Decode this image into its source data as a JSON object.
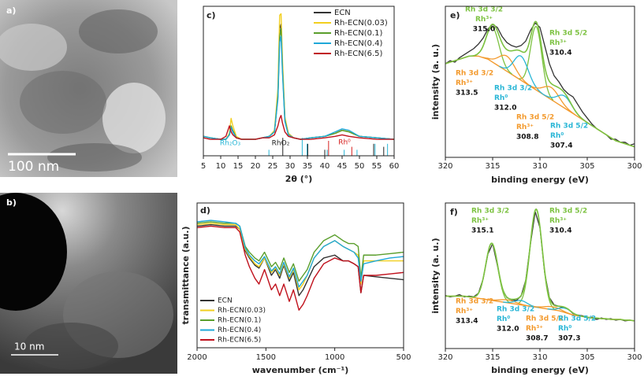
{
  "images": [
    {
      "label": "a)",
      "scale_bar": "100 nm"
    },
    {
      "label": "b)",
      "scale_bar": "10 nm"
    }
  ],
  "chart_data": [
    {
      "type": "line",
      "label": "c)",
      "xlabel": "2θ (°)",
      "x": [
        5,
        7,
        10,
        11.5,
        12.5,
        13,
        13.5,
        14.5,
        16,
        18,
        20,
        22,
        24,
        25.5,
        26.5,
        27,
        27.4,
        27.8,
        28.5,
        29.5,
        31,
        33,
        36,
        40,
        43,
        45,
        47,
        50,
        55,
        60
      ],
      "xlim": [
        5,
        60
      ],
      "xticks": [
        5,
        10,
        15,
        20,
        25,
        30,
        35,
        40,
        45,
        50,
        55,
        60
      ],
      "ylim": [
        0,
        100
      ],
      "legend": "upper right",
      "series": [
        {
          "name": "ECN",
          "color": "#333333",
          "values": [
            13,
            12,
            11,
            11,
            14,
            19,
            16,
            12,
            11,
            11,
            11,
            12,
            13,
            16,
            40,
            85,
            88,
            60,
            25,
            15,
            12,
            11,
            12,
            13,
            15,
            17,
            16,
            13,
            12,
            11
          ]
        },
        {
          "name": "Rh-ECN(0.03)",
          "color": "#f2cf1f",
          "values": [
            13,
            12,
            11,
            11,
            15,
            25,
            20,
            13,
            11,
            11,
            11,
            12,
            13,
            17,
            45,
            94,
            95,
            65,
            26,
            15,
            12,
            11,
            12,
            13,
            15,
            17,
            16,
            13,
            12,
            11
          ]
        },
        {
          "name": "Rh-ECN(0.1)",
          "color": "#5a9e2c",
          "values": [
            13,
            12,
            11,
            11,
            14,
            20,
            17,
            12,
            11,
            11,
            11,
            12,
            13,
            16,
            40,
            80,
            85,
            58,
            24,
            14,
            12,
            11,
            12,
            13,
            15,
            17,
            16,
            13,
            12,
            11
          ]
        },
        {
          "name": "Rh-ECN(0.4)",
          "color": "#1fa8d8",
          "values": [
            13,
            12,
            11,
            11,
            14,
            19,
            16,
            12,
            11,
            11,
            11,
            12,
            13,
            16,
            38,
            76,
            80,
            56,
            23,
            14,
            12,
            11,
            12,
            13,
            16,
            18,
            17,
            13,
            12,
            11
          ]
        },
        {
          "name": "Rh-ECN(6.5)",
          "color": "#c0121d",
          "values": [
            12,
            11,
            11,
            13,
            20,
            16,
            14,
            12,
            11,
            11,
            11,
            12,
            12,
            14,
            20,
            25,
            27,
            22,
            16,
            13,
            12,
            11,
            11,
            12,
            13,
            14,
            13,
            12,
            11,
            11
          ]
        }
      ],
      "reference_lines": [
        {
          "name": "Rh₂O₃",
          "color": "#29b6d6",
          "positions": [
            23.9,
            33.5,
            34.9,
            40.7,
            45.6,
            49.3,
            54.5,
            58.1
          ],
          "heights": [
            4,
            12,
            8,
            4,
            4,
            4,
            8,
            8
          ]
        },
        {
          "name": "RhO₂",
          "color": "#222222",
          "positions": [
            27.9,
            35.1,
            40.0,
            54.1,
            57
          ],
          "heights": [
            12,
            8,
            4,
            8,
            6
          ]
        },
        {
          "name": "Rh⁰",
          "color": "#d6201f",
          "positions": [
            41.1,
            47.8
          ],
          "heights": [
            10,
            6
          ]
        }
      ]
    },
    {
      "type": "line",
      "label": "d)",
      "xlabel": "wavenumber (cm⁻¹)",
      "ylabel": "transmittance (a.u.)",
      "x": [
        2000,
        1900,
        1800,
        1720,
        1690,
        1650,
        1620,
        1580,
        1550,
        1510,
        1460,
        1430,
        1400,
        1370,
        1330,
        1300,
        1260,
        1230,
        1200,
        1150,
        1080,
        1000,
        940,
        900,
        860,
        830,
        810,
        790,
        700,
        600,
        500
      ],
      "xlim": [
        2000,
        500
      ],
      "xticks": [
        2000,
        1500,
        1000,
        500
      ],
      "ylim": [
        0,
        100
      ],
      "legend": "lower left",
      "series": [
        {
          "name": "ECN",
          "color": "#333333",
          "values": [
            84,
            85,
            84,
            84,
            82,
            67,
            62,
            57,
            55,
            62,
            50,
            54,
            48,
            57,
            46,
            52,
            36,
            40,
            46,
            56,
            62,
            64,
            60,
            60,
            58,
            56,
            38,
            50,
            49,
            48,
            47
          ]
        },
        {
          "name": "Rh-ECN(0.03)",
          "color": "#f2cf1f",
          "values": [
            85,
            86,
            85,
            85,
            82,
            68,
            63,
            58,
            56,
            62,
            52,
            55,
            50,
            58,
            48,
            54,
            40,
            44,
            50,
            62,
            70,
            74,
            70,
            68,
            66,
            64,
            44,
            60,
            60,
            60,
            60
          ]
        },
        {
          "name": "Rh-ECN(0.1)",
          "color": "#5a9e2c",
          "values": [
            86,
            87,
            86,
            86,
            84,
            70,
            66,
            62,
            60,
            66,
            56,
            59,
            54,
            62,
            52,
            58,
            46,
            50,
            54,
            66,
            74,
            78,
            74,
            72,
            72,
            70,
            48,
            64,
            64,
            65,
            66
          ]
        },
        {
          "name": "Rh-ECN(0.4)",
          "color": "#1fa8d8",
          "values": [
            87,
            88,
            87,
            86,
            84,
            69,
            64,
            60,
            58,
            63,
            53,
            56,
            51,
            59,
            49,
            55,
            42,
            46,
            50,
            62,
            70,
            74,
            70,
            68,
            66,
            62,
            46,
            58,
            60,
            62,
            63
          ]
        },
        {
          "name": "Rh-ECN(6.5)",
          "color": "#c0121d",
          "values": [
            83,
            84,
            83,
            83,
            80,
            64,
            56,
            48,
            44,
            54,
            40,
            44,
            36,
            44,
            32,
            40,
            26,
            30,
            36,
            48,
            58,
            62,
            60,
            60,
            58,
            56,
            38,
            50,
            50,
            51,
            52
          ]
        }
      ]
    },
    {
      "type": "xps",
      "label": "e)",
      "xlabel": "binding energy (eV)",
      "ylabel": "intensity (a. u.)",
      "x": [
        320,
        319.5,
        319,
        318.5,
        318,
        317.5,
        317,
        316.5,
        316,
        315.5,
        315,
        314.5,
        314,
        313.5,
        313,
        312.5,
        312,
        311.5,
        311,
        310.5,
        310,
        309.5,
        309,
        308.5,
        308,
        307.5,
        307,
        306.5,
        306,
        305.5,
        305,
        304.5,
        304,
        303.5,
        303,
        302.5,
        302,
        301.5,
        301,
        300.5,
        300
      ],
      "xlim": [
        320,
        300
      ],
      "xticks": [
        320,
        315,
        310,
        305,
        300
      ],
      "ylim": [
        0,
        100
      ],
      "envelope_color": "#7dc242",
      "series": [
        {
          "color": "#333333",
          "values": [
            62,
            64,
            63,
            66,
            68,
            70,
            72,
            75,
            79,
            85,
            88,
            86,
            80,
            76,
            74,
            73,
            74,
            77,
            84,
            89,
            86,
            74,
            62,
            54,
            50,
            45,
            42,
            40,
            35,
            30,
            26,
            22,
            19,
            17,
            15,
            12,
            12,
            10,
            10,
            8,
            9
          ]
        },
        {
          "color": "#f39a2d",
          "values": [
            62,
            63,
            64,
            65,
            66,
            67,
            67,
            67,
            66,
            65,
            63,
            61,
            59,
            57,
            55,
            53,
            51,
            49,
            47,
            45,
            43,
            41,
            39,
            37,
            35,
            33,
            31,
            29,
            27,
            25,
            23,
            21,
            19,
            17,
            15,
            13,
            11,
            10,
            9,
            8,
            7
          ]
        }
      ],
      "peaks": [
        {
          "lines": [
            "Rh 3d 3/2",
            "Rh³⁺"
          ],
          "center": {
            "value": 315.0,
            "label": "315.0"
          },
          "height": 23,
          "fwhm": 1.6,
          "color": "#7dc242"
        },
        {
          "lines": [
            "Rh 3d 5/2",
            "Rh³⁺"
          ],
          "center": 310.4,
          "height": 42,
          "fwhm": 1.4,
          "color": "#7dc242"
        },
        {
          "lines": [
            "Rh 3d 3/2",
            "Rh³⁺"
          ],
          "center": 313.5,
          "height": 10,
          "fwhm": 2,
          "color": "#f39a2d"
        },
        {
          "lines": [
            "Rh 3d 3/2",
            "Rh⁰"
          ],
          "center": {
            "value": 312.0,
            "label": "312.0"
          },
          "height": 16,
          "fwhm": 1.8,
          "color": "#29b6d6"
        },
        {
          "lines": [
            "Rh 3d 5/2",
            "Rh³⁺"
          ],
          "center": 308.8,
          "height": 8,
          "fwhm": 2,
          "color": "#f39a2d"
        },
        {
          "lines": [
            "Rh 3d 5/2",
            "Rh⁰"
          ],
          "center": 307.4,
          "height": 8,
          "fwhm": 1.8,
          "color": "#29b6d6"
        }
      ]
    },
    {
      "type": "xps",
      "label": "f)",
      "xlabel": "binding energy (eV)",
      "ylabel": "intensity (a. u.)",
      "x": [
        320,
        319.5,
        319,
        318.5,
        318,
        317.5,
        317,
        316.5,
        316,
        315.5,
        315,
        314.5,
        314,
        313.5,
        313,
        312.5,
        312,
        311.5,
        311,
        310.5,
        310,
        309.5,
        309,
        308.5,
        308,
        307.5,
        307,
        306.5,
        306,
        305.5,
        305,
        304.5,
        304,
        303.5,
        303,
        302.5,
        302,
        301.5,
        301,
        300.5,
        300
      ],
      "xlim": [
        320,
        300
      ],
      "xticks": [
        320,
        315,
        310,
        305,
        300
      ],
      "ylim": [
        0,
        100
      ],
      "envelope_color": "#7dc242",
      "series": [
        {
          "color": "#333333",
          "values": [
            36.5,
            35.5,
            36,
            37,
            35.5,
            36,
            35.5,
            38,
            48,
            65,
            72,
            57,
            41,
            35,
            33.5,
            33,
            36,
            47,
            72,
            94,
            83,
            52,
            35,
            30,
            29,
            28,
            27,
            24,
            23,
            22.5,
            21,
            21.5,
            20,
            21,
            20,
            20.5,
            19.5,
            20,
            19,
            19.5,
            19
          ]
        },
        {
          "color": "#f39a2d",
          "values": [
            36,
            36,
            36,
            36,
            36,
            35.5,
            35,
            34.5,
            34,
            33.5,
            33,
            32.5,
            32,
            31.5,
            31,
            30.5,
            30,
            29.5,
            29,
            28.5,
            28,
            27.5,
            27,
            26.5,
            26,
            25,
            24,
            23,
            22.5,
            22,
            21.5,
            21,
            21,
            20.5,
            20.5,
            20,
            20,
            20,
            19.5,
            19.5,
            19
          ]
        }
      ],
      "peaks": [
        {
          "lines": [
            "Rh 3d 3/2",
            "Rh³⁺"
          ],
          "center": 315.1,
          "height": 39,
          "fwhm": 1.5,
          "color": "#7dc242"
        },
        {
          "lines": [
            "Rh 3d 5/2",
            "Rh³⁺"
          ],
          "center": 310.4,
          "height": 67,
          "fwhm": 1.5,
          "color": "#7dc242"
        },
        {
          "lines": [
            "Rh 3d 3/2",
            "Rh³⁺"
          ],
          "center": 313.4,
          "height": 2,
          "fwhm": 2,
          "color": "#f39a2d"
        },
        {
          "lines": [
            "Rh 3d 3/2",
            "Rh⁰"
          ],
          "center": {
            "value": 312.0,
            "label": "312.0"
          },
          "height": 3,
          "fwhm": 1.5,
          "color": "#29b6d6"
        },
        {
          "lines": [
            "Rh 3d 5/2",
            "Rh³⁺"
          ],
          "center": 308.7,
          "height": 2,
          "fwhm": 2,
          "color": "#f39a2d"
        },
        {
          "lines": [
            "Rh 3d 5/2",
            "Rh⁰"
          ],
          "center": 307.3,
          "height": 3,
          "fwhm": 1.5,
          "color": "#29b6d6"
        }
      ]
    }
  ]
}
